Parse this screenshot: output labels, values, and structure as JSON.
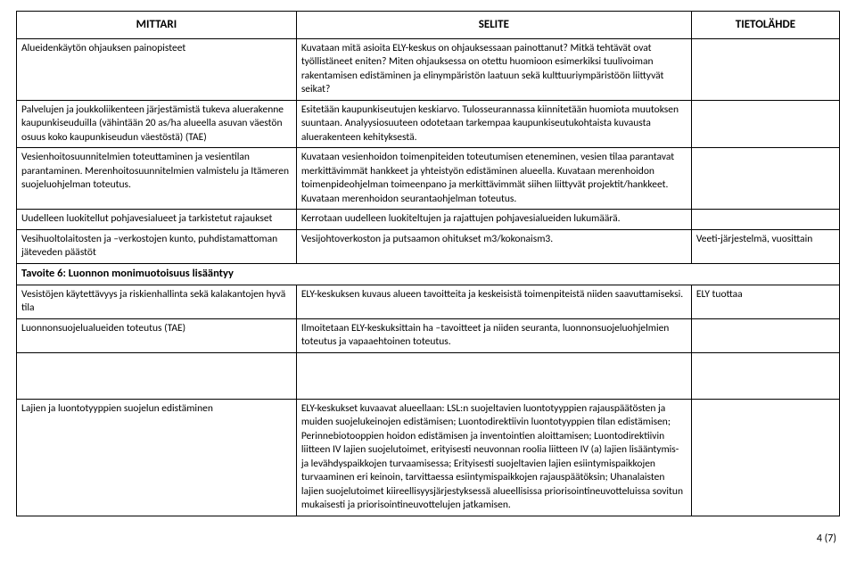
{
  "columns": {
    "c1": "MITTARI",
    "c2": "SELITE",
    "c3": "TIETOLÄHDE"
  },
  "rows": {
    "r1": {
      "mittari": "Alueidenkäytön ohjauksen painopisteet",
      "selite": "Kuvataan mitä asioita ELY-keskus on ohjauksessaan painottanut? Mitkä tehtävät ovat työllistäneet eniten? Miten ohjauksessa on otettu huomioon esimerkiksi tuulivoiman rakentamisen edistäminen ja elinympäristön laatuun sekä kulttuuriympäristöön liittyvät seikat?",
      "lahde": ""
    },
    "r2": {
      "mittari": "Palvelujen ja joukkoliikenteen järjestämistä tukeva aluerakenne kaupunkiseuduilla (vähintään 20 as/ha alueella asuvan väestön osuus koko kaupunkiseudun väestöstä) (TAE)",
      "selite": "Esitetään kaupunkiseutujen keskiarvo. Tulosseurannassa kiinnitetään huomiota muutoksen suuntaan. Analyysiosuuteen odotetaan tarkempaa kaupunkiseutukohtaista kuvausta aluerakenteen kehityksestä.",
      "lahde": ""
    },
    "r3": {
      "mittari": "Vesienhoitosuunnitelmien toteuttaminen ja vesientilan parantaminen. Merenhoitosuunnitelmien valmistelu ja Itämeren suojeluohjelman toteutus.",
      "selite": "Kuvataan vesienhoidon toimenpiteiden toteutumisen eteneminen, vesien tilaa parantavat merkittävimmät hankkeet ja yhteistyön edistäminen alueella. Kuvataan merenhoidon toimenpideohjelman toimeenpano ja merkittävimmät siihen liittyvät projektit/hankkeet. Kuvataan merenhoidon seurantaohjelman toteutus.",
      "lahde": ""
    },
    "r4": {
      "mittari": "Uudelleen luokitellut pohjavesialueet ja tarkistetut rajaukset",
      "selite": "Kerrotaan uudelleen luokiteltujen ja rajattujen pohjavesialueiden lukumäärä.",
      "lahde": ""
    },
    "r5": {
      "mittari": "Vesihuoltolaitosten ja –verkostojen kunto, puhdistamattoman jäteveden päästöt",
      "selite": "Vesijohtoverkoston ja putsaamon ohitukset m3/kokonaism3.",
      "lahde": "Veeti-järjestelmä, vuosittain"
    },
    "section6": "Tavoite 6: Luonnon monimuotoisuus lisääntyy",
    "r6": {
      "mittari": "Vesistöjen käytettävyys ja riskienhallinta sekä kalakantojen hyvä tila",
      "selite": "ELY-keskuksen kuvaus alueen tavoitteita ja keskeisistä toimenpiteistä niiden saavuttamiseksi.",
      "lahde": "ELY tuottaa"
    },
    "r7": {
      "mittari": "Luonnonsuojelualueiden toteutus (TAE)",
      "selite": "Ilmoitetaan ELY-keskuksittain ha –tavoitteet ja niiden seuranta, luonnonsuojeluohjelmien toteutus ja vapaaehtoinen toteutus.",
      "lahde": ""
    },
    "r8": {
      "mittari": "Lajien ja luontotyyppien suojelun edistäminen",
      "selite": "ELY-keskukset kuvaavat alueellaan: LSL:n suojeltavien luontotyyppien rajauspäätösten ja muiden suojelukeinojen edistämisen; Luontodirektiivin luontotyyppien tilan edistämisen; Perinnebiotooppien hoidon edistämisen ja inventointien aloittamisen; Luontodirektiivin liitteen IV lajien suojelutoimet, erityisesti neuvonnan roolia liitteen IV (a) lajien lisääntymis- ja levähdyspaikkojen turvaamisessa; Erityisesti suojeltavien lajien esiintymispaikkojen turvaaminen eri keinoin, tarvittaessa esiintymispaikkojen rajauspäätöksin; Uhanalaisten lajien suojelutoimet kiireellisyysjärjestyksessä alueellisissa priorisointineuvotteluissa sovitun mukaisesti ja priorisointineuvottelujen jatkamisen.",
      "lahde": ""
    }
  },
  "footer": "4 (7)"
}
